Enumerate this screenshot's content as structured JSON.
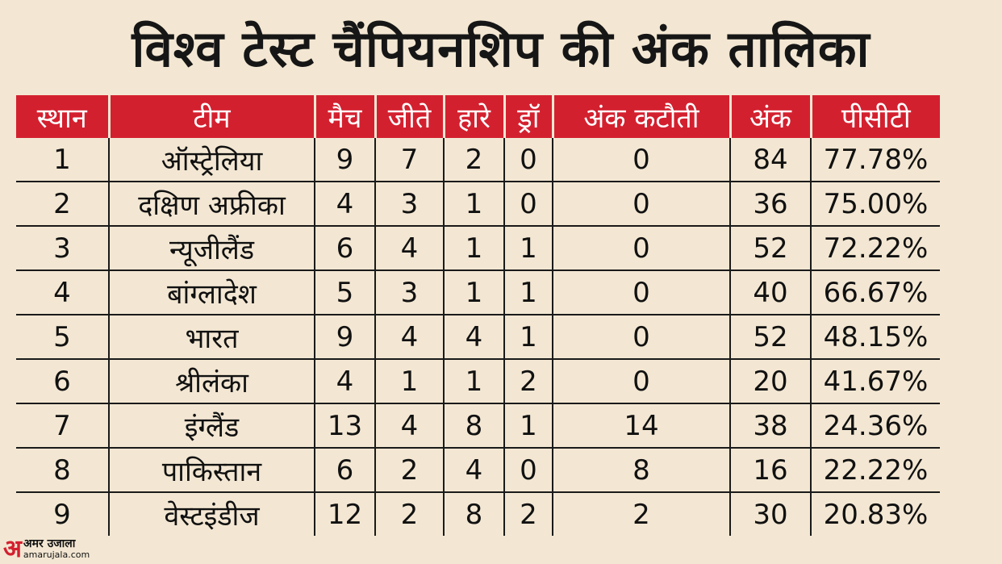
{
  "title": "विश्व टेस्ट चैंपियनशिप की अंक तालिका",
  "table": {
    "headers": [
      "स्थान",
      "टीम",
      "मैच",
      "जीते",
      "हारे",
      "ड्रॉ",
      "अंक कटौती",
      "अंक",
      "पीसीटी"
    ],
    "rows": [
      [
        "1",
        "ऑस्ट्रेलिया",
        "9",
        "7",
        "2",
        "0",
        "0",
        "84",
        "77.78%"
      ],
      [
        "2",
        "दक्षिण अफ्रीका",
        "4",
        "3",
        "1",
        "0",
        "0",
        "36",
        "75.00%"
      ],
      [
        "3",
        "न्यूजीलैंड",
        "6",
        "4",
        "1",
        "1",
        "0",
        "52",
        "72.22%"
      ],
      [
        "4",
        "बांग्लादेश",
        "5",
        "3",
        "1",
        "1",
        "0",
        "40",
        "66.67%"
      ],
      [
        "5",
        "भारत",
        "9",
        "4",
        "4",
        "1",
        "0",
        "52",
        "48.15%"
      ],
      [
        "6",
        "श्रीलंका",
        "4",
        "1",
        "1",
        "2",
        "0",
        "20",
        "41.67%"
      ],
      [
        "7",
        "इंग्लैंड",
        "13",
        "4",
        "8",
        "1",
        "14",
        "38",
        "24.36%"
      ],
      [
        "8",
        "पाकिस्तान",
        "6",
        "2",
        "4",
        "0",
        "8",
        "16",
        "22.22%"
      ],
      [
        "9",
        "वेस्टइंडीज",
        "12",
        "2",
        "8",
        "2",
        "2",
        "30",
        "20.83%"
      ]
    ]
  },
  "logo": {
    "mark": "अ",
    "hindi": "अमर उजाला",
    "url": "amarujala.com",
    "color": "#d3202f"
  },
  "colors": {
    "header_bg": "#d3202f",
    "page_bg": "#f3e7d3"
  }
}
